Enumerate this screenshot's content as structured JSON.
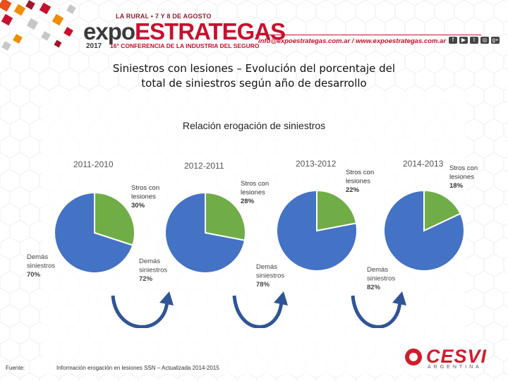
{
  "header": {
    "event_date": "LA RURAL • 7 Y 8 DE AGOSTO",
    "logo_expo": "expo",
    "logo_estrategas": "ESTRATEGAS",
    "logo_year": "2017",
    "logo_conference": "16° CONFERENCIA DE LA INDUSTRIA DEL SEGURO",
    "contact": "info@expoestrategas.com.ar / www.expoestrategas.com.ar",
    "social_icons": [
      "facebook-icon",
      "youtube-icon",
      "twitter-icon",
      "instagram-icon",
      "google-plus-icon"
    ],
    "social_glyphs": [
      "f",
      "▶",
      "t",
      "◎",
      "g+"
    ]
  },
  "title_line1": "Siniestros con lesiones – Evolución del porcentaje del",
  "title_line2": "total de siniestros según año de desarrollo",
  "subtitle": "Relación erogación de siniestros",
  "chart_data": [
    {
      "type": "pie",
      "title": "2011-2010",
      "slices": [
        {
          "label_lines": [
            "Stros con",
            "lesiones",
            "30%"
          ],
          "value": 30,
          "color": "#70ad47"
        },
        {
          "label_lines": [
            "Demás",
            "siniestros",
            "70%"
          ],
          "value": 70,
          "color": "#4472c4"
        }
      ]
    },
    {
      "type": "pie",
      "title": "2012-2011",
      "slices": [
        {
          "label_lines": [
            "Stros con",
            "lesiones",
            "28%"
          ],
          "value": 28,
          "color": "#70ad47"
        },
        {
          "label_lines": [
            "Demás",
            "siniestros",
            "72%"
          ],
          "value": 72,
          "color": "#4472c4"
        }
      ]
    },
    {
      "type": "pie",
      "title": "2013-2012",
      "slices": [
        {
          "label_lines": [
            "Stros con",
            "lesiones",
            "22%"
          ],
          "value": 22,
          "color": "#70ad47"
        },
        {
          "label_lines": [
            "Demás",
            "siniestros",
            "78%"
          ],
          "value": 78,
          "color": "#4472c4"
        }
      ]
    },
    {
      "type": "pie",
      "title": "2014-2013",
      "slices": [
        {
          "label_lines": [
            "Stros con",
            "lesiones",
            "18%"
          ],
          "value": 18,
          "color": "#70ad47"
        },
        {
          "label_lines": [
            "Demás",
            "siniestros",
            "82%"
          ],
          "value": 82,
          "color": "#4472c4"
        }
      ]
    }
  ],
  "arrow_color": "#2f5597",
  "footer": {
    "source_label": "Fuente:",
    "source_text": "Información erogación en lesiones SSN – Actualizada 2014-2015",
    "logo_name": "CESVI",
    "logo_sub": "ARGENTINA"
  }
}
